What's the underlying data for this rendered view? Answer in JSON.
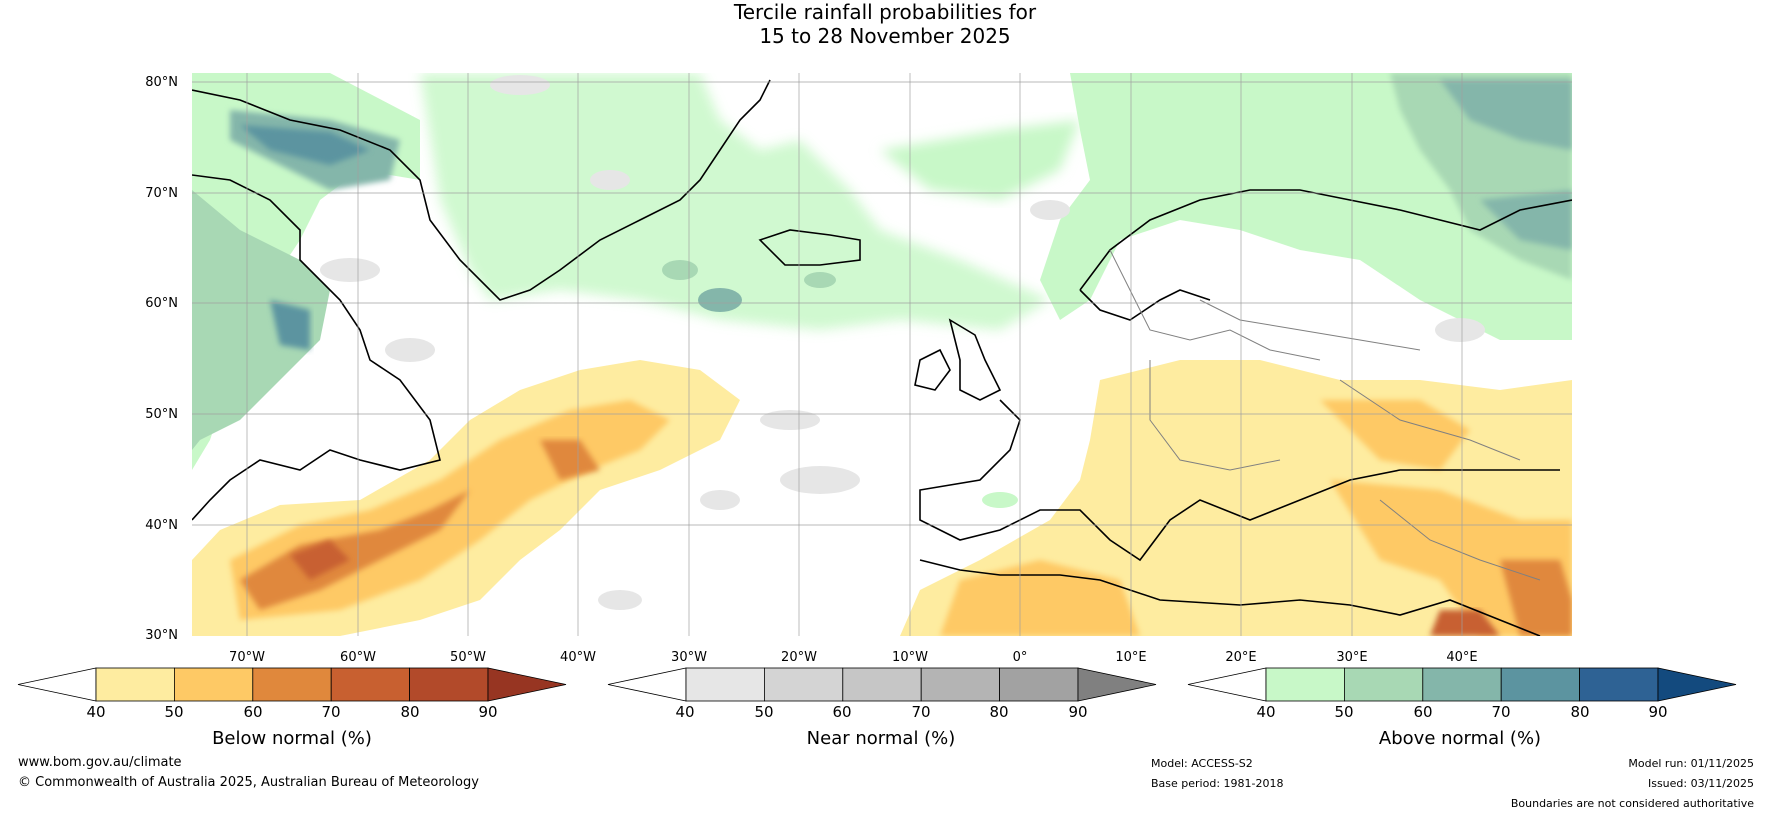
{
  "title": {
    "line1": "Tercile rainfall probabilities for",
    "line2": "15 to 28 November 2025"
  },
  "axes": {
    "lat_labels": [
      "80°N",
      "70°N",
      "60°N",
      "50°N",
      "40°N",
      "30°N"
    ],
    "lon_labels": [
      "70°W",
      "60°W",
      "50°W",
      "40°W",
      "30°W",
      "20°W",
      "10°W",
      "0°",
      "10°E",
      "20°E",
      "30°E",
      "40°E"
    ]
  },
  "colorbars": [
    {
      "label": "Below normal (%)",
      "ticks": [
        "40",
        "50",
        "60",
        "70",
        "80",
        "90"
      ],
      "colors": [
        "#ffffff",
        "#feeca0",
        "#fec965",
        "#e0883c",
        "#c86030",
        "#b24a2a",
        "#973522"
      ]
    },
    {
      "label": "Near normal (%)",
      "ticks": [
        "40",
        "50",
        "60",
        "70",
        "80",
        "90"
      ],
      "colors": [
        "#ffffff",
        "#e6e6e6",
        "#d4d4d4",
        "#c6c6c6",
        "#b4b4b4",
        "#a2a2a2",
        "#808080"
      ]
    },
    {
      "label": "Above normal (%)",
      "ticks": [
        "40",
        "50",
        "60",
        "70",
        "80",
        "90"
      ],
      "colors": [
        "#ffffff",
        "#c8f8c8",
        "#a8d8b4",
        "#84b6aa",
        "#5c94a0",
        "#2e6294",
        "#134a7e"
      ]
    }
  ],
  "footer": {
    "website": "www.bom.gov.au/climate",
    "copyright": "© Commonwealth of Australia 2025, Australian Bureau of Meteorology",
    "model": "Model: ACCESS-S2",
    "base_period": "Base period: 1981-2018",
    "model_run": "Model run: 01/11/2025",
    "issued": "Issued: 03/11/2025",
    "disclaimer": "Boundaries are not considered authoritative"
  }
}
